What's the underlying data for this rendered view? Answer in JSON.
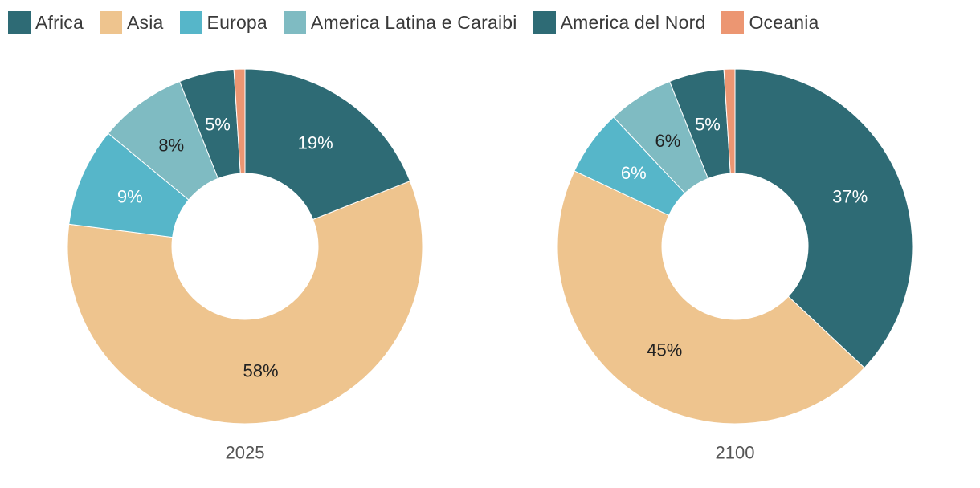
{
  "legend": [
    {
      "name": "Africa",
      "color": "#2e6b75"
    },
    {
      "name": "Asia",
      "color": "#eec48e"
    },
    {
      "name": "Europa",
      "color": "#56b6c9"
    },
    {
      "name": "America Latina e Caraibi",
      "color": "#7fbbc2"
    },
    {
      "name": "America del Nord",
      "color": "#2e6b75"
    },
    {
      "name": "Oceania",
      "color": "#ec9672"
    }
  ],
  "chart_data": [
    {
      "type": "pie",
      "style": "donut",
      "title": "2025",
      "categories": [
        "Africa",
        "Asia",
        "Europa",
        "America Latina e Caraibi",
        "America del Nord",
        "Oceania"
      ],
      "values": [
        19,
        58,
        9,
        8,
        5,
        1
      ],
      "labels": [
        "19%",
        "58%",
        "9%",
        "8%",
        "5%",
        ""
      ]
    },
    {
      "type": "pie",
      "style": "donut",
      "title": "2100",
      "categories": [
        "Africa",
        "Asia",
        "Europa",
        "America Latina e Caraibi",
        "America del Nord",
        "Oceania"
      ],
      "values": [
        37,
        45,
        6,
        6,
        5,
        1
      ],
      "labels": [
        "37%",
        "45%",
        "6%",
        "6%",
        "5%",
        ""
      ]
    }
  ]
}
